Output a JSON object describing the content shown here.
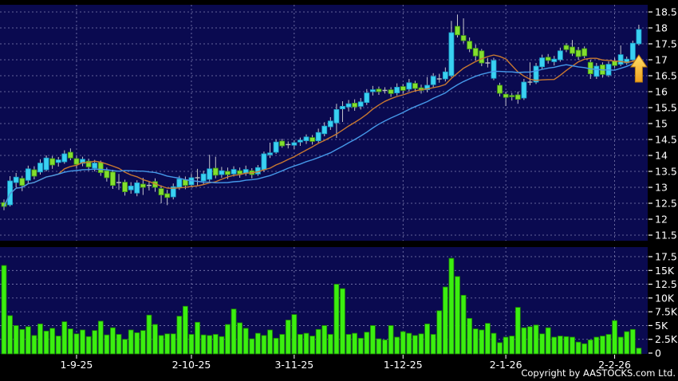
{
  "copyright": "Copyright by AASTOCKS.com Ltd.",
  "colors": {
    "bg": "#000000",
    "panel": "#0a0a50",
    "grid": "#9494c4",
    "up": "#3ad1f2",
    "up_border": "#18a0c8",
    "down": "#84de2e",
    "down_border": "#3f9c10",
    "doji": "#c0c0c0",
    "wick": "#c4c4cc",
    "volume": "#3bef10",
    "volume_border": "#1d8205",
    "ma_short": "#c87830",
    "ma_long": "#4598e8",
    "text": "#ffffff",
    "arrow_top": "#ffe06a",
    "arrow_bottom": "#f0a01e",
    "arrow_border": "#b87a10"
  },
  "chart_data": [
    {
      "type": "candlestick",
      "title": "",
      "grid": "dashed",
      "legend": "none",
      "ylim": [
        11.225,
        18.725
      ],
      "price_ticks": [
        {
          "label": "18.5",
          "value": 18.5
        },
        {
          "label": "18",
          "value": 18.0
        },
        {
          "label": "17.5",
          "value": 17.5
        },
        {
          "label": "17",
          "value": 17.0
        },
        {
          "label": "16.5",
          "value": 16.5
        },
        {
          "label": "16",
          "value": 16.0
        },
        {
          "label": "15.5",
          "value": 15.5
        },
        {
          "label": "15",
          "value": 15.0
        },
        {
          "label": "14.5",
          "value": 14.5
        },
        {
          "label": "14",
          "value": 14.0
        },
        {
          "label": "13.5",
          "value": 13.5
        },
        {
          "label": "13",
          "value": 13.0
        },
        {
          "label": "12.5",
          "value": 12.5
        },
        {
          "label": "12",
          "value": 12.0
        },
        {
          "label": "11.5",
          "value": 11.5
        }
      ],
      "x_labels": [
        {
          "label": "1-9-25",
          "index": 12
        },
        {
          "label": "2-10-25",
          "index": 31
        },
        {
          "label": "3-11-25",
          "index": 48
        },
        {
          "label": "1-12-25",
          "index": 66
        },
        {
          "label": "2-1-26",
          "index": 83
        },
        {
          "label": "2-2-26",
          "index": 101
        }
      ],
      "ma": [
        {
          "name": "sma-10",
          "period": 10,
          "color_key": "ma_short"
        },
        {
          "name": "sma-20",
          "period": 20,
          "color_key": "ma_long"
        }
      ],
      "candles_format": [
        "open",
        "high",
        "low",
        "close"
      ],
      "candles": [
        [
          12.52,
          12.62,
          12.28,
          12.4
        ],
        [
          12.45,
          13.35,
          12.4,
          13.2
        ],
        [
          13.15,
          13.45,
          13.0,
          13.32
        ],
        [
          13.28,
          13.36,
          12.88,
          13.06
        ],
        [
          13.22,
          13.68,
          13.12,
          13.58
        ],
        [
          13.55,
          13.66,
          13.25,
          13.35
        ],
        [
          13.48,
          13.88,
          13.4,
          13.76
        ],
        [
          13.55,
          14.0,
          13.5,
          13.92
        ],
        [
          13.9,
          13.98,
          13.58,
          13.7
        ],
        [
          13.78,
          13.95,
          13.65,
          13.86
        ],
        [
          13.8,
          14.16,
          13.74,
          14.05
        ],
        [
          14.1,
          14.22,
          13.85,
          13.92
        ],
        [
          13.9,
          13.98,
          13.6,
          13.72
        ],
        [
          13.75,
          13.96,
          13.66,
          13.88
        ],
        [
          13.82,
          13.9,
          13.52,
          13.64
        ],
        [
          13.6,
          13.86,
          13.5,
          13.76
        ],
        [
          13.78,
          13.84,
          13.36,
          13.46
        ],
        [
          13.52,
          13.62,
          13.18,
          13.3
        ],
        [
          13.48,
          13.55,
          12.95,
          13.06
        ],
        [
          13.15,
          13.42,
          12.92,
          13.15
        ],
        [
          13.16,
          13.24,
          12.74,
          12.86
        ],
        [
          12.92,
          13.16,
          12.8,
          13.04
        ],
        [
          12.82,
          13.22,
          12.72,
          13.14
        ],
        [
          13.1,
          13.3,
          12.76,
          13.0
        ],
        [
          13.06,
          13.18,
          12.9,
          13.06
        ],
        [
          13.18,
          13.28,
          12.86,
          13.0
        ],
        [
          12.96,
          13.06,
          12.5,
          12.76
        ],
        [
          12.8,
          12.92,
          12.44,
          12.68
        ],
        [
          12.7,
          13.12,
          12.62,
          13.02
        ],
        [
          13.0,
          13.36,
          12.92,
          13.26
        ],
        [
          13.24,
          13.34,
          12.94,
          13.06
        ],
        [
          13.08,
          13.42,
          13.0,
          13.3
        ],
        [
          13.3,
          13.58,
          13.06,
          13.3
        ],
        [
          13.2,
          13.52,
          13.1,
          13.42
        ],
        [
          13.25,
          14.02,
          13.18,
          13.58
        ],
        [
          13.6,
          13.96,
          13.28,
          13.38
        ],
        [
          13.4,
          13.64,
          13.3,
          13.52
        ],
        [
          13.5,
          13.62,
          13.26,
          13.4
        ],
        [
          13.42,
          13.66,
          13.34,
          13.56
        ],
        [
          13.52,
          13.62,
          13.3,
          13.42
        ],
        [
          13.44,
          13.68,
          13.36,
          13.56
        ],
        [
          13.52,
          13.6,
          13.28,
          13.4
        ],
        [
          13.42,
          13.7,
          13.36,
          13.62
        ],
        [
          13.55,
          14.12,
          13.48,
          14.05
        ],
        [
          14.02,
          14.4,
          13.92,
          14.08
        ],
        [
          14.1,
          14.5,
          14.05,
          14.42
        ],
        [
          14.45,
          14.52,
          14.24,
          14.3
        ],
        [
          14.34,
          14.44,
          14.22,
          14.34
        ],
        [
          14.32,
          14.48,
          14.2,
          14.4
        ],
        [
          14.42,
          14.56,
          14.3,
          14.48
        ],
        [
          14.46,
          14.66,
          14.36,
          14.58
        ],
        [
          14.56,
          14.64,
          14.34,
          14.44
        ],
        [
          14.46,
          14.84,
          14.4,
          14.72
        ],
        [
          14.68,
          15.04,
          14.6,
          14.92
        ],
        [
          14.9,
          15.2,
          14.8,
          15.08
        ],
        [
          15.02,
          15.62,
          14.55,
          15.44
        ],
        [
          15.46,
          15.7,
          15.05,
          15.54
        ],
        [
          15.52,
          15.74,
          15.38,
          15.62
        ],
        [
          15.64,
          15.76,
          15.4,
          15.52
        ],
        [
          15.54,
          15.8,
          15.44,
          15.68
        ],
        [
          15.66,
          16.08,
          15.58,
          15.96
        ],
        [
          16.0,
          16.18,
          15.88,
          16.06
        ],
        [
          16.08,
          16.16,
          15.9,
          16.0
        ],
        [
          16.04,
          16.14,
          15.94,
          16.04
        ],
        [
          16.06,
          16.14,
          15.84,
          15.94
        ],
        [
          15.96,
          16.26,
          15.88,
          16.14
        ],
        [
          16.16,
          16.24,
          15.94,
          16.04
        ],
        [
          16.08,
          16.4,
          16.0,
          16.28
        ],
        [
          16.26,
          16.34,
          16.0,
          16.1
        ],
        [
          16.12,
          16.22,
          15.94,
          16.04
        ],
        [
          16.06,
          16.46,
          15.98,
          16.2
        ],
        [
          16.22,
          16.58,
          16.14,
          16.48
        ],
        [
          16.4,
          16.56,
          16.28,
          16.4
        ],
        [
          16.4,
          16.76,
          16.32,
          16.62
        ],
        [
          16.5,
          18.22,
          16.45,
          17.85
        ],
        [
          18.05,
          18.42,
          17.7,
          17.78
        ],
        [
          17.76,
          18.3,
          17.52,
          17.6
        ],
        [
          17.58,
          17.7,
          17.24,
          17.34
        ],
        [
          17.36,
          17.48,
          16.98,
          17.12
        ],
        [
          17.28,
          17.34,
          16.8,
          16.9
        ],
        [
          16.9,
          17.06,
          16.76,
          16.9
        ],
        [
          16.42,
          17.06,
          16.36,
          16.98
        ],
        [
          16.2,
          16.28,
          15.85,
          15.95
        ],
        [
          15.92,
          16.0,
          15.55,
          15.82
        ],
        [
          15.88,
          15.96,
          15.72,
          15.84
        ],
        [
          15.9,
          16.0,
          15.62,
          15.76
        ],
        [
          15.8,
          16.4,
          15.74,
          16.3
        ],
        [
          16.3,
          16.92,
          16.2,
          16.3
        ],
        [
          16.3,
          16.9,
          16.24,
          16.8
        ],
        [
          16.78,
          17.16,
          16.7,
          17.06
        ],
        [
          17.08,
          17.18,
          16.88,
          16.98
        ],
        [
          16.94,
          17.12,
          16.82,
          17.02
        ],
        [
          17.0,
          17.38,
          16.94,
          17.28
        ],
        [
          17.45,
          17.52,
          17.24,
          17.32
        ],
        [
          17.4,
          17.62,
          17.12,
          17.2
        ],
        [
          17.3,
          17.4,
          17.0,
          17.1
        ],
        [
          17.35,
          17.42,
          17.05,
          17.12
        ],
        [
          16.92,
          17.0,
          16.4,
          16.56
        ],
        [
          16.48,
          16.9,
          16.4,
          16.8
        ],
        [
          16.84,
          16.92,
          16.44,
          16.54
        ],
        [
          16.52,
          16.95,
          16.46,
          16.86
        ],
        [
          16.96,
          17.06,
          16.74,
          16.82
        ],
        [
          16.86,
          17.45,
          16.8,
          17.16
        ],
        [
          16.9,
          17.1,
          16.84,
          17.02
        ],
        [
          17.0,
          17.6,
          16.95,
          17.52
        ],
        [
          17.5,
          18.1,
          17.45,
          17.95
        ]
      ]
    },
    {
      "type": "bar",
      "title": "volume",
      "unit": "K",
      "ylim": [
        0,
        19
      ],
      "volume_ticks": [
        {
          "label": "17.5K",
          "value": 17.5
        },
        {
          "label": "15K",
          "value": 15.0
        },
        {
          "label": "12.5K",
          "value": 12.5
        },
        {
          "label": "10K",
          "value": 10.0
        },
        {
          "label": "7.5K",
          "value": 7.5
        },
        {
          "label": "5K",
          "value": 5.0
        },
        {
          "label": "2.5K",
          "value": 2.5
        },
        {
          "label": "0",
          "value": 0.0
        }
      ],
      "values": [
        15.9,
        6.8,
        5.0,
        4.3,
        4.8,
        3.2,
        5.3,
        4.0,
        4.5,
        3.1,
        5.7,
        4.4,
        3.5,
        4.2,
        3.0,
        4.1,
        5.8,
        3.3,
        4.6,
        3.4,
        2.5,
        4.2,
        3.7,
        4.1,
        6.9,
        5.2,
        3.2,
        3.5,
        3.5,
        6.7,
        8.5,
        3.4,
        5.6,
        3.3,
        3.2,
        3.4,
        3.0,
        5.2,
        8.0,
        5.5,
        4.5,
        2.6,
        3.6,
        3.2,
        4.2,
        2.7,
        3.4,
        6.0,
        7.0,
        3.4,
        3.6,
        3.1,
        4.3,
        5.0,
        3.4,
        12.5,
        11.7,
        3.4,
        3.6,
        2.7,
        3.8,
        5.0,
        2.6,
        2.4,
        5.0,
        2.9,
        3.9,
        3.6,
        3.2,
        3.5,
        5.3,
        3.4,
        7.7,
        12.0,
        17.2,
        13.9,
        10.5,
        6.3,
        4.4,
        4.2,
        5.4,
        3.6,
        1.9,
        2.9,
        3.1,
        8.3,
        4.6,
        4.8,
        5.1,
        3.5,
        4.6,
        2.9,
        3.1,
        3.0,
        2.9,
        2.0,
        1.7,
        2.4,
        2.9,
        3.1,
        3.4,
        5.9,
        2.9,
        3.9,
        4.3,
        0.9
      ]
    }
  ],
  "annotations": {
    "up_arrow": {
      "index": 105,
      "tip_price": 17.15
    }
  }
}
